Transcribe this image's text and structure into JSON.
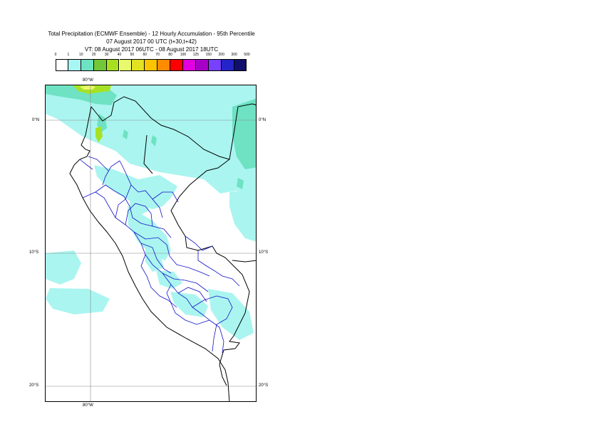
{
  "title": {
    "line1": "Total Precipitation (ECMWF Ensemble) - 12 Hourly Accumulation - 95th Percentile",
    "line2": "07 August 2017 00 UTC (t+30,t+42)",
    "line3": "VT: 08 August 2017 06UTC - 08 August 2017 18UTC"
  },
  "legend": {
    "labels": [
      "0",
      "1",
      "10",
      "20",
      "30",
      "40",
      "50",
      "60",
      "70",
      "80",
      "100",
      "125",
      "150",
      "200",
      "300",
      "500"
    ],
    "colors": [
      "#ffffff",
      "#a8f6f2",
      "#6ce4c4",
      "#72c838",
      "#a8e020",
      "#e8fa6c",
      "#e2e222",
      "#ffc400",
      "#ff8c00",
      "#ff0000",
      "#e000e0",
      "#a800c8",
      "#7840ff",
      "#2424c8",
      "#10106c"
    ]
  },
  "axes": {
    "lon_top": "80°W",
    "lon_bottom": "80°W",
    "lat_left": [
      "0°N",
      "10°S",
      "20°S"
    ],
    "lat_right": [
      "0°N",
      "10°S",
      "20°S"
    ]
  },
  "map": {
    "region": "Peru",
    "colors": {
      "precip_light": "#aaf5f0",
      "precip_medium": "#6ee2c3",
      "precip_heavy": "#a6e223",
      "precip_yellow": "#e8f86a",
      "coastline": "#000000",
      "admin_border": "#1010c8",
      "grid": "#888888"
    }
  }
}
